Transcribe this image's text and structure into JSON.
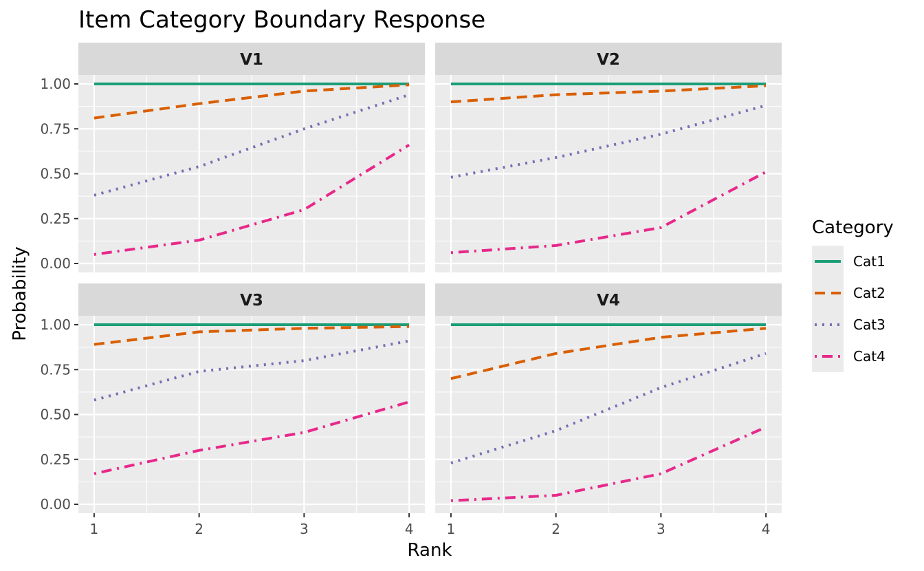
{
  "chart_data": {
    "type": "line",
    "title": "Item Category Boundary Response",
    "xlabel": "Rank",
    "ylabel": "Probability",
    "x": [
      1,
      2,
      3,
      4
    ],
    "xlim": [
      1,
      4
    ],
    "ylim": [
      0,
      1
    ],
    "xticks": [
      "1",
      "2",
      "3",
      "4"
    ],
    "yticks": [
      "0.00",
      "0.25",
      "0.50",
      "0.75",
      "1.00"
    ],
    "legend": {
      "title": "Category",
      "position": "right",
      "entries": [
        {
          "name": "Cat1",
          "color": "#1b9e77",
          "linetype": "solid"
        },
        {
          "name": "Cat2",
          "color": "#d95f02",
          "linetype": "dashed"
        },
        {
          "name": "Cat3",
          "color": "#7570b3",
          "linetype": "dotted"
        },
        {
          "name": "Cat4",
          "color": "#e7298a",
          "linetype": "dotdash"
        }
      ]
    },
    "panels": [
      {
        "name": "V1",
        "series": [
          {
            "name": "Cat1",
            "values": [
              1.0,
              1.0,
              1.0,
              1.0
            ]
          },
          {
            "name": "Cat2",
            "values": [
              0.81,
              0.89,
              0.96,
              0.995
            ]
          },
          {
            "name": "Cat3",
            "values": [
              0.38,
              0.54,
              0.75,
              0.94
            ]
          },
          {
            "name": "Cat4",
            "values": [
              0.05,
              0.13,
              0.3,
              0.66
            ]
          }
        ]
      },
      {
        "name": "V2",
        "series": [
          {
            "name": "Cat1",
            "values": [
              1.0,
              1.0,
              1.0,
              1.0
            ]
          },
          {
            "name": "Cat2",
            "values": [
              0.9,
              0.94,
              0.96,
              0.99
            ]
          },
          {
            "name": "Cat3",
            "values": [
              0.48,
              0.59,
              0.72,
              0.88
            ]
          },
          {
            "name": "Cat4",
            "values": [
              0.06,
              0.1,
              0.2,
              0.51
            ]
          }
        ]
      },
      {
        "name": "V3",
        "series": [
          {
            "name": "Cat1",
            "values": [
              1.0,
              1.0,
              1.0,
              1.0
            ]
          },
          {
            "name": "Cat2",
            "values": [
              0.89,
              0.96,
              0.98,
              0.99
            ]
          },
          {
            "name": "Cat3",
            "values": [
              0.58,
              0.74,
              0.8,
              0.91
            ]
          },
          {
            "name": "Cat4",
            "values": [
              0.17,
              0.3,
              0.4,
              0.57
            ]
          }
        ]
      },
      {
        "name": "V4",
        "series": [
          {
            "name": "Cat1",
            "values": [
              1.0,
              1.0,
              1.0,
              1.0
            ]
          },
          {
            "name": "Cat2",
            "values": [
              0.7,
              0.84,
              0.93,
              0.98
            ]
          },
          {
            "name": "Cat3",
            "values": [
              0.23,
              0.41,
              0.65,
              0.84
            ]
          },
          {
            "name": "Cat4",
            "values": [
              0.02,
              0.05,
              0.17,
              0.43
            ]
          }
        ]
      }
    ]
  }
}
